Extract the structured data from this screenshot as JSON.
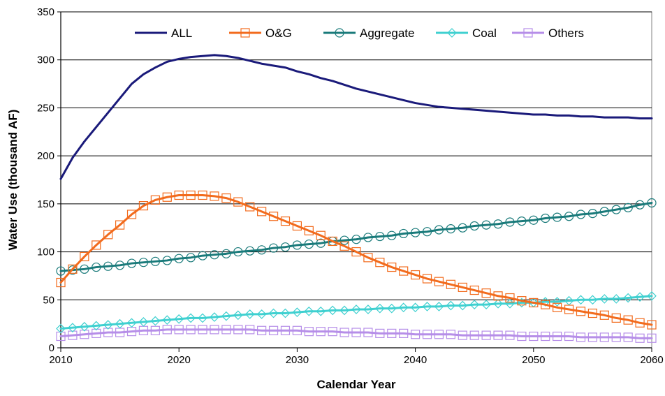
{
  "chart_data": {
    "type": "line",
    "title": "",
    "xlabel": "Calendar Year",
    "ylabel": "Water Use (thousand AF)",
    "xlim": [
      2010,
      2060
    ],
    "ylim": [
      0,
      350
    ],
    "x_ticks": [
      2010,
      2020,
      2030,
      2040,
      2050,
      2060
    ],
    "y_ticks": [
      0,
      50,
      100,
      150,
      200,
      250,
      300,
      350
    ],
    "grid": "horizontal",
    "legend_position": "top",
    "x": [
      2010,
      2011,
      2012,
      2013,
      2014,
      2015,
      2016,
      2017,
      2018,
      2019,
      2020,
      2021,
      2022,
      2023,
      2024,
      2025,
      2026,
      2027,
      2028,
      2029,
      2030,
      2031,
      2032,
      2033,
      2034,
      2035,
      2036,
      2037,
      2038,
      2039,
      2040,
      2041,
      2042,
      2043,
      2044,
      2045,
      2046,
      2047,
      2048,
      2049,
      2050,
      2051,
      2052,
      2053,
      2054,
      2055,
      2056,
      2057,
      2058,
      2059,
      2060
    ],
    "series": [
      {
        "name": "ALL",
        "color": "#1a1a7a",
        "marker": "none",
        "values": [
          176,
          198,
          215,
          230,
          245,
          260,
          275,
          285,
          292,
          298,
          301,
          303,
          304,
          305,
          304,
          302,
          299,
          296,
          294,
          292,
          288,
          285,
          281,
          278,
          274,
          270,
          267,
          264,
          261,
          258,
          255,
          253,
          251,
          250,
          249,
          248,
          247,
          246,
          245,
          244,
          243,
          243,
          242,
          242,
          241,
          241,
          240,
          240,
          240,
          239,
          239
        ]
      },
      {
        "name": "O&G",
        "color": "#f26b1d",
        "marker": "square",
        "values": [
          68,
          82,
          95,
          107,
          118,
          128,
          139,
          148,
          154,
          157,
          159,
          159,
          159,
          158,
          156,
          152,
          147,
          142,
          137,
          132,
          127,
          122,
          117,
          111,
          106,
          100,
          94,
          89,
          84,
          80,
          76,
          72,
          69,
          66,
          63,
          60,
          57,
          54,
          52,
          49,
          47,
          45,
          42,
          40,
          38,
          36,
          34,
          31,
          29,
          26,
          24
        ]
      },
      {
        "name": "Aggregate",
        "color": "#197a7a",
        "marker": "circle",
        "values": [
          80,
          81,
          82,
          84,
          85,
          86,
          88,
          89,
          90,
          91,
          93,
          94,
          96,
          97,
          98,
          100,
          101,
          102,
          104,
          105,
          107,
          108,
          109,
          111,
          112,
          113,
          115,
          116,
          117,
          119,
          120,
          121,
          123,
          124,
          125,
          127,
          128,
          129,
          131,
          132,
          133,
          135,
          136,
          137,
          139,
          140,
          142,
          144,
          146,
          149,
          151
        ]
      },
      {
        "name": "Coal",
        "color": "#3fd0d0",
        "marker": "diamond",
        "values": [
          20,
          21,
          22,
          23,
          24,
          25,
          26,
          27,
          28,
          29,
          30,
          31,
          31,
          32,
          33,
          34,
          35,
          35,
          36,
          36,
          37,
          38,
          38,
          39,
          39,
          40,
          40,
          41,
          41,
          42,
          42,
          43,
          43,
          44,
          44,
          45,
          45,
          46,
          46,
          47,
          47,
          48,
          48,
          49,
          50,
          50,
          51,
          51,
          52,
          53,
          54
        ]
      },
      {
        "name": "Others",
        "color": "#b68ee8",
        "marker": "square",
        "values": [
          12,
          13,
          14,
          15,
          16,
          16,
          17,
          18,
          18,
          19,
          19,
          19,
          19,
          19,
          19,
          19,
          19,
          18,
          18,
          18,
          18,
          17,
          17,
          17,
          16,
          16,
          16,
          15,
          15,
          15,
          14,
          14,
          14,
          14,
          13,
          13,
          13,
          13,
          13,
          12,
          12,
          12,
          12,
          12,
          11,
          11,
          11,
          11,
          11,
          10,
          10
        ]
      }
    ]
  }
}
